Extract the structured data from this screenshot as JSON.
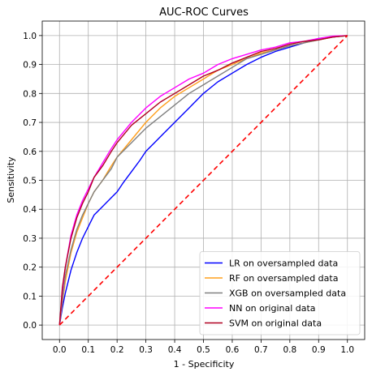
{
  "chart_data": {
    "type": "line",
    "title": "AUC-ROC Curves",
    "xlabel": "1 - Specificity",
    "ylabel": "Sensitivity",
    "xlim": [
      -0.06,
      1.06
    ],
    "ylim": [
      -0.05,
      1.05
    ],
    "xticks": [
      "0.0",
      "0.1",
      "0.2",
      "0.3",
      "0.4",
      "0.5",
      "0.6",
      "0.7",
      "0.8",
      "0.9",
      "1.0"
    ],
    "yticks": [
      "0.0",
      "0.1",
      "0.2",
      "0.3",
      "0.4",
      "0.5",
      "0.6",
      "0.7",
      "0.8",
      "0.9",
      "1.0"
    ],
    "grid": true,
    "legend_position": "lower-right",
    "series": [
      {
        "name": "LR on oversampled data",
        "color": "#0000ff",
        "x": [
          0.0,
          0.01,
          0.02,
          0.04,
          0.06,
          0.08,
          0.1,
          0.12,
          0.15,
          0.18,
          0.2,
          0.22,
          0.25,
          0.28,
          0.3,
          0.33,
          0.36,
          0.4,
          0.45,
          0.5,
          0.55,
          0.6,
          0.65,
          0.7,
          0.75,
          0.8,
          0.85,
          0.9,
          0.95,
          1.0
        ],
        "y": [
          0.0,
          0.06,
          0.11,
          0.19,
          0.25,
          0.3,
          0.34,
          0.38,
          0.41,
          0.44,
          0.46,
          0.49,
          0.53,
          0.57,
          0.6,
          0.63,
          0.66,
          0.7,
          0.75,
          0.8,
          0.84,
          0.87,
          0.9,
          0.925,
          0.945,
          0.96,
          0.975,
          0.99,
          0.995,
          1.0
        ]
      },
      {
        "name": "RF on oversampled data",
        "color": "#ff9f1c",
        "x": [
          0.0,
          0.01,
          0.02,
          0.04,
          0.06,
          0.08,
          0.1,
          0.12,
          0.15,
          0.18,
          0.2,
          0.25,
          0.3,
          0.35,
          0.4,
          0.45,
          0.5,
          0.55,
          0.6,
          0.65,
          0.7,
          0.75,
          0.8,
          0.85,
          0.9,
          0.95,
          1.0
        ],
        "y": [
          0.0,
          0.08,
          0.15,
          0.25,
          0.32,
          0.37,
          0.42,
          0.46,
          0.5,
          0.55,
          0.58,
          0.64,
          0.7,
          0.75,
          0.79,
          0.82,
          0.85,
          0.88,
          0.9,
          0.92,
          0.94,
          0.95,
          0.965,
          0.975,
          0.985,
          0.995,
          1.0
        ]
      },
      {
        "name": "XGB on oversampled data",
        "color": "#808080",
        "x": [
          0.0,
          0.01,
          0.02,
          0.04,
          0.06,
          0.08,
          0.1,
          0.12,
          0.15,
          0.18,
          0.2,
          0.25,
          0.3,
          0.35,
          0.4,
          0.45,
          0.5,
          0.55,
          0.6,
          0.65,
          0.7,
          0.75,
          0.8,
          0.85,
          0.9,
          0.95,
          1.0
        ],
        "y": [
          0.0,
          0.09,
          0.17,
          0.26,
          0.33,
          0.38,
          0.42,
          0.46,
          0.5,
          0.54,
          0.58,
          0.63,
          0.68,
          0.72,
          0.76,
          0.8,
          0.83,
          0.86,
          0.89,
          0.92,
          0.935,
          0.95,
          0.965,
          0.975,
          0.985,
          0.995,
          1.0
        ]
      },
      {
        "name": "NN on original data",
        "color": "#ff00ff",
        "x": [
          0.0,
          0.01,
          0.02,
          0.04,
          0.06,
          0.08,
          0.1,
          0.12,
          0.15,
          0.18,
          0.2,
          0.25,
          0.3,
          0.35,
          0.4,
          0.45,
          0.5,
          0.55,
          0.6,
          0.65,
          0.7,
          0.75,
          0.8,
          0.85,
          0.9,
          0.95,
          1.0
        ],
        "y": [
          0.0,
          0.12,
          0.2,
          0.31,
          0.38,
          0.43,
          0.47,
          0.51,
          0.56,
          0.61,
          0.64,
          0.7,
          0.75,
          0.79,
          0.82,
          0.85,
          0.87,
          0.9,
          0.92,
          0.935,
          0.95,
          0.96,
          0.975,
          0.98,
          0.99,
          0.998,
          1.0
        ]
      },
      {
        "name": "SVM on original data",
        "color": "#b00020",
        "x": [
          0.0,
          0.01,
          0.02,
          0.04,
          0.06,
          0.08,
          0.1,
          0.12,
          0.15,
          0.18,
          0.2,
          0.25,
          0.3,
          0.35,
          0.4,
          0.45,
          0.5,
          0.55,
          0.6,
          0.65,
          0.7,
          0.75,
          0.8,
          0.85,
          0.9,
          0.95,
          1.0
        ],
        "y": [
          0.0,
          0.13,
          0.2,
          0.3,
          0.37,
          0.42,
          0.46,
          0.51,
          0.55,
          0.6,
          0.63,
          0.69,
          0.73,
          0.77,
          0.8,
          0.83,
          0.86,
          0.88,
          0.905,
          0.925,
          0.945,
          0.955,
          0.97,
          0.98,
          0.985,
          0.995,
          1.0
        ]
      }
    ],
    "reference_line": {
      "color": "#ff0000",
      "style": "dashed",
      "x": [
        0.0,
        1.0
      ],
      "y": [
        0.0,
        1.0
      ]
    }
  }
}
